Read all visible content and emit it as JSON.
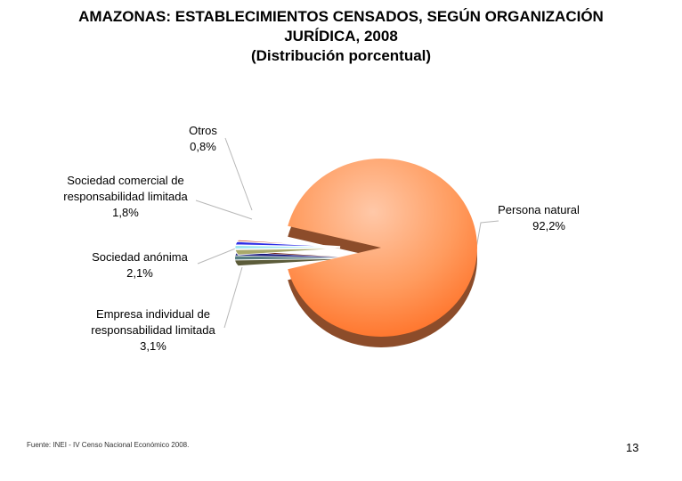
{
  "title_lines": [
    "AMAZONAS: ESTABLECIMIENTOS CENSADOS, SEGÚN ORGANIZACIÓN",
    "JURÍDICA, 2008",
    "(Distribución porcentual)"
  ],
  "chart_data": {
    "type": "pie",
    "title": "AMAZONAS: ESTABLECIMIENTOS CENSADOS, SEGÚN ORGANIZACIÓN JURÍDICA, 2008 (Distribución porcentual)",
    "slices": [
      {
        "name_lines": [
          "Persona natural"
        ],
        "value_label": "92,2%",
        "value": 92.2,
        "color": "#FF8A4C"
      },
      {
        "name_lines": [
          "Empresa individual de",
          "responsabilidad limitada"
        ],
        "value_label": "3,1%",
        "value": 3.1,
        "color": "#A8A86A"
      },
      {
        "name_lines": [
          "Sociedad anónima"
        ],
        "value_label": "2,1%",
        "value": 2.1,
        "color": "#9FE6F0"
      },
      {
        "name_lines": [
          "Sociedad comercial de",
          "responsabilidad limitada"
        ],
        "value_label": "1,8%",
        "value": 1.8,
        "color": "#2E2EE6"
      },
      {
        "name_lines": [
          "Otros"
        ],
        "value_label": "0,8%",
        "value": 0.8,
        "color": "#C0361E"
      }
    ],
    "legend": "none",
    "style": "3d-exploded"
  },
  "source": "Fuente: INEI - IV Censo Nacional Económico 2008.",
  "page_number": "13"
}
